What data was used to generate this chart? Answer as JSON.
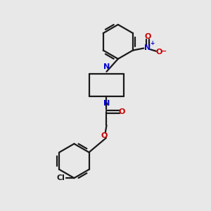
{
  "background_color": "#e8e8e8",
  "bond_color": "#1a1a1a",
  "nitrogen_color": "#0000cc",
  "oxygen_color": "#cc0000",
  "figsize": [
    3.0,
    3.0
  ],
  "dpi": 100,
  "xlim": [
    0,
    10
  ],
  "ylim": [
    0,
    10
  ],
  "lw": 1.6,
  "fs": 8.0
}
